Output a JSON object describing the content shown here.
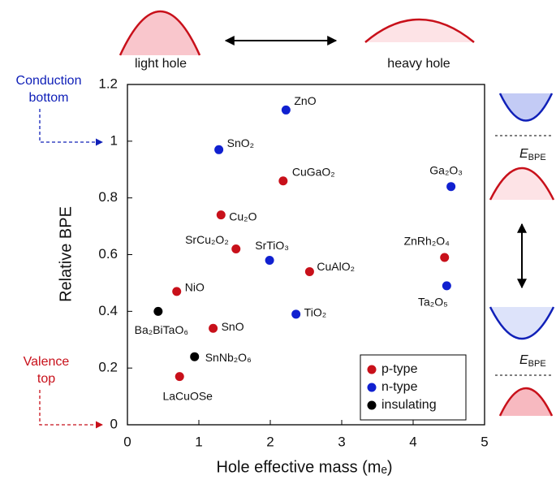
{
  "chart_data": {
    "type": "scatter",
    "xlabel": "Hole effective mass (mₑ)",
    "ylabel": "Relative BPE",
    "xlim": [
      0,
      5
    ],
    "xticks": [
      0,
      1,
      2,
      3,
      4,
      5
    ],
    "ylim": [
      0,
      1.2
    ],
    "yticks": [
      0,
      0.2,
      0.4,
      0.6,
      0.8,
      1,
      1.2
    ],
    "legend": "lower right",
    "series": [
      {
        "name": "p-type",
        "color": "#c8101a",
        "labels": [
          "CuGaO₂",
          "Cu₂O",
          "SrCu₂O₂",
          "CuAlO₂",
          "ZnRh₂O₄",
          "NiO",
          "SnO",
          "LaCuOSe"
        ],
        "x": [
          2.18,
          1.31,
          1.52,
          2.55,
          4.44,
          0.69,
          1.2,
          0.73
        ],
        "values": [
          0.86,
          0.74,
          0.62,
          0.54,
          0.59,
          0.47,
          0.34,
          0.17
        ]
      },
      {
        "name": "n-type",
        "color": "#1020d0",
        "labels": [
          "ZnO",
          "SnO₂",
          "Ga₂O₃",
          "SrTiO₃",
          "Ta₂O₅",
          "TiO₂"
        ],
        "x": [
          2.22,
          1.28,
          4.53,
          1.99,
          4.47,
          2.36
        ],
        "values": [
          1.11,
          0.97,
          0.84,
          0.58,
          0.49,
          0.39
        ]
      },
      {
        "name": "insulating",
        "color": "#000000",
        "labels": [
          "Ba₂BiTaO₆",
          "SnNb₂O₆"
        ],
        "x": [
          0.43,
          0.94
        ],
        "values": [
          0.4,
          0.24
        ]
      }
    ],
    "annotations": {
      "conduction": [
        "Conduction",
        "bottom"
      ],
      "valence": [
        "Valence",
        "top"
      ],
      "light_hole": "light hole",
      "heavy_hole": "heavy hole",
      "energy_label": {
        "symbol": "E",
        "subscript": "BPE"
      }
    }
  }
}
